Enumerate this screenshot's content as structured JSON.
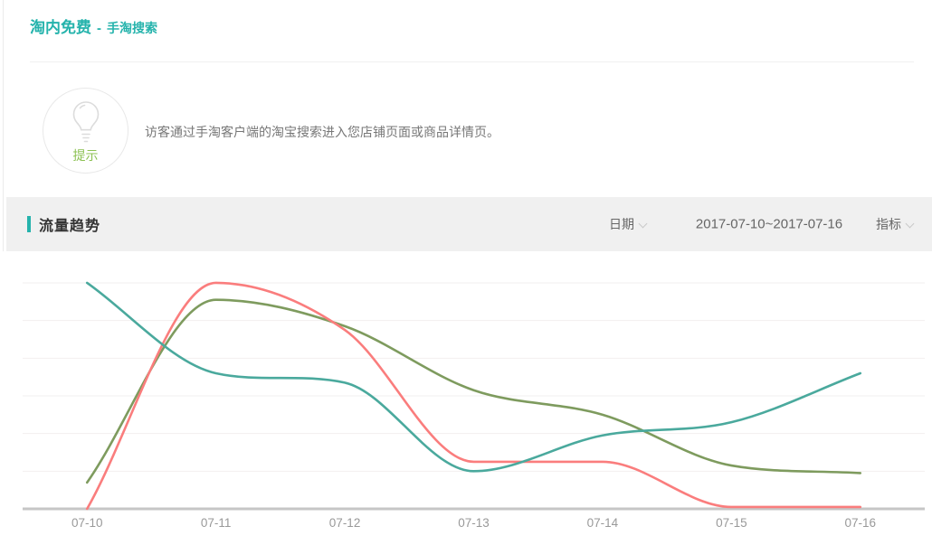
{
  "page": {
    "title": "淘内免费",
    "separator": "-",
    "subtitle": "手淘搜索"
  },
  "tip": {
    "label": "提示",
    "text": "访客通过手淘客户端的淘宝搜索进入您店铺页面或商品详情页。"
  },
  "trend": {
    "title": "流量趋势",
    "date_label": "日期",
    "date_range": "2017-07-10~2017-07-16",
    "metric_label": "指标"
  },
  "colors": {
    "brand_teal": "#25b3ac",
    "tip_green": "#8cc152",
    "band_bg": "#f0f0f0",
    "grid_line": "#f2efef",
    "axis_line": "#c6c6c6",
    "axis_label": "#999999"
  },
  "icons": {
    "lightbulb": "lightbulb-icon",
    "chevron_down": "chevron-down-icon"
  },
  "chart_data": {
    "type": "line",
    "title": "流量趋势",
    "categories": [
      "07-10",
      "07-11",
      "07-12",
      "07-13",
      "07-14",
      "07-15",
      "07-16"
    ],
    "series": [
      {
        "name": "green-series",
        "color": "#7e9b5e",
        "values": [
          0.7,
          5.55,
          4.85,
          3.15,
          2.5,
          1.15,
          0.95
        ]
      },
      {
        "name": "red-series",
        "color": "#fa7d7d",
        "values": [
          0.0,
          6.0,
          4.75,
          1.25,
          1.25,
          0.05,
          0.05
        ]
      },
      {
        "name": "teal-series",
        "color": "#4aa99d",
        "values": [
          6.0,
          3.6,
          3.35,
          1.0,
          1.95,
          2.3,
          3.6
        ]
      }
    ],
    "ylim": [
      0,
      7
    ],
    "y_axis_labels": "none",
    "gridline_count": 6,
    "legend": "none",
    "smooth": true,
    "xlabel": "",
    "ylabel": ""
  }
}
